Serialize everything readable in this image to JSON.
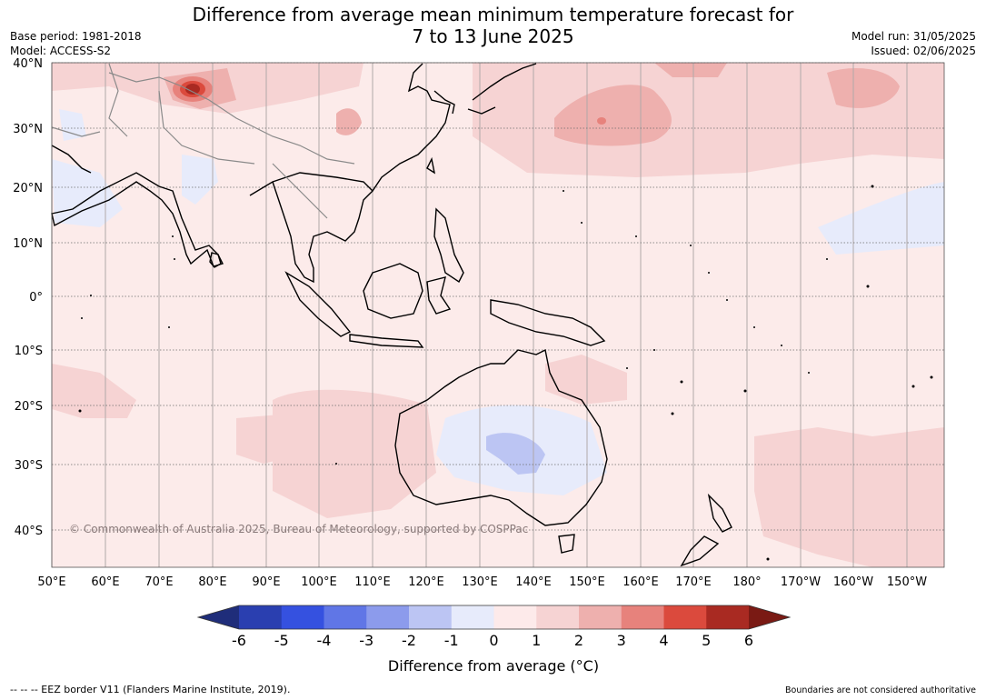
{
  "title_line1": "Difference from average mean minimum temperature forecast for",
  "title_line2": "7 to 13 June 2025",
  "base_period": "Base period: 1981-2018",
  "model": "Model: ACCESS-S2",
  "model_run": "Model run: 31/05/2025",
  "issued": "Issued: 02/06/2025",
  "copyright": "© Commonwealth of Australia 2025, Bureau of Meteorology, supported by COSPPac",
  "lat_labels": [
    "40°N",
    "30°N",
    "20°N",
    "10°N",
    "0°",
    "10°S",
    "20°S",
    "30°S",
    "40°S"
  ],
  "lon_labels": [
    "50°E",
    "60°E",
    "70°E",
    "80°E",
    "90°E",
    "100°E",
    "110°E",
    "120°E",
    "130°E",
    "140°E",
    "150°E",
    "160°E",
    "170°E",
    "180°",
    "170°W",
    "160°W",
    "150°W"
  ],
  "colorbar": {
    "ticks": [
      "-6",
      "-5",
      "-4",
      "-3",
      "-2",
      "-1",
      "0",
      "1",
      "2",
      "3",
      "4",
      "5",
      "6"
    ],
    "colors": [
      "#1f2d7a",
      "#2a3fb0",
      "#3551e0",
      "#6076e6",
      "#8c9bec",
      "#bcc5f3",
      "#e7ebfb",
      "#fdeaea",
      "#f6d3d3",
      "#eeb0ae",
      "#e7827c",
      "#db4a3d",
      "#a92a22",
      "#7a1a14"
    ],
    "label": "Difference from average (",
    "label_unit": "°C)"
  },
  "eez_note": "--  --  -- EEZ border V11 (Flanders Marine Institute, 2019).",
  "boundary_note": "Boundaries are not considered authoritative"
}
